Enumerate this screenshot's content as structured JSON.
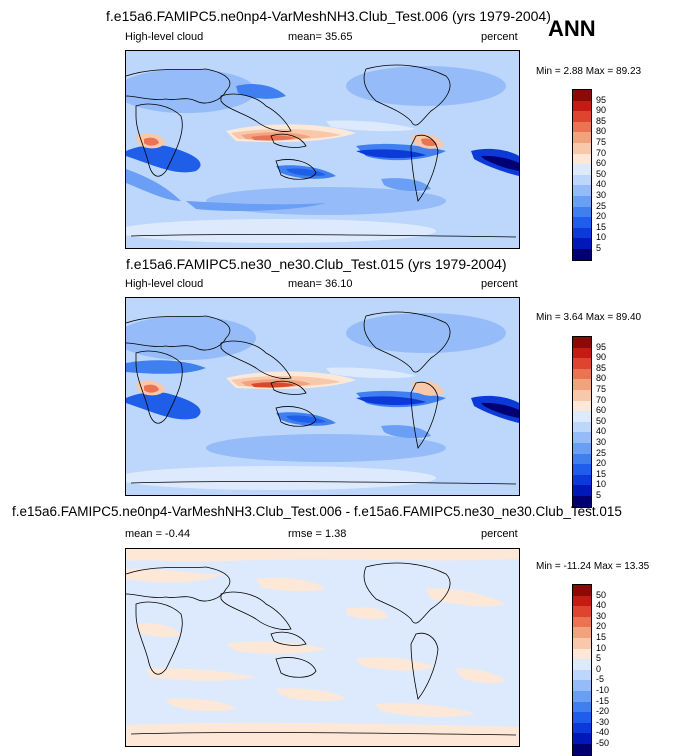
{
  "season": "ANN",
  "panels": [
    {
      "title": "f.e15a6.FAMIPC5.ne0np4-VarMeshNH3.Club_Test.006 (yrs 1979-2004)",
      "left_label": "High-level cloud",
      "center_label": "mean=  35.65",
      "right_label": "percent",
      "minmax": "Min =  2.88 Max =  89.23"
    },
    {
      "title": "f.e15a6.FAMIPC5.ne30_ne30.Club_Test.015 (yrs 1979-2004)",
      "left_label": "High-level cloud",
      "center_label": "mean=  36.10",
      "right_label": "percent",
      "minmax": "Min =  3.64 Max =  89.40"
    },
    {
      "title": "f.e15a6.FAMIPC5.ne0np4-VarMeshNH3.Club_Test.006 - f.e15a6.FAMIPC5.ne30_ne30.Club_Test.015",
      "left_label": "mean =  -0.44",
      "center_label": "rmse =   1.38",
      "right_label": "percent",
      "minmax": "Min = -11.24 Max =  13.35"
    }
  ],
  "chart_data": [
    {
      "type": "heatmap",
      "title": "f.e15a6.FAMIPC5.ne0np4-VarMeshNH3.Club_Test.006 (yrs 1979-2004)",
      "variable": "High-level cloud",
      "units": "percent",
      "mean": 35.65,
      "min": 2.88,
      "max": 89.23,
      "colorbar_levels": [
        5,
        10,
        15,
        20,
        25,
        30,
        40,
        50,
        60,
        70,
        75,
        80,
        85,
        90,
        95
      ],
      "colorbar_colors": [
        "#000073",
        "#0018b5",
        "#0b3ad9",
        "#1e5ee8",
        "#3f7ff0",
        "#6b9ef5",
        "#95bcf9",
        "#bcd7fb",
        "#ddeafd",
        "#fde8d8",
        "#f8c8aa",
        "#f3a27e",
        "#eb7354",
        "#dc4530",
        "#c21c14",
        "#8b0a06"
      ]
    },
    {
      "type": "heatmap",
      "title": "f.e15a6.FAMIPC5.ne30_ne30.Club_Test.015 (yrs 1979-2004)",
      "variable": "High-level cloud",
      "units": "percent",
      "mean": 36.1,
      "min": 3.64,
      "max": 89.4,
      "colorbar_levels": [
        5,
        10,
        15,
        20,
        25,
        30,
        40,
        50,
        60,
        70,
        75,
        80,
        85,
        90,
        95
      ],
      "colorbar_colors": [
        "#000073",
        "#0018b5",
        "#0b3ad9",
        "#1e5ee8",
        "#3f7ff0",
        "#6b9ef5",
        "#95bcf9",
        "#bcd7fb",
        "#ddeafd",
        "#fde8d8",
        "#f8c8aa",
        "#f3a27e",
        "#eb7354",
        "#dc4530",
        "#c21c14",
        "#8b0a06"
      ]
    },
    {
      "type": "heatmap",
      "title": "f.e15a6.FAMIPC5.ne0np4-VarMeshNH3.Club_Test.006 - f.e15a6.FAMIPC5.ne30_ne30.Club_Test.015",
      "units": "percent",
      "mean": -0.44,
      "rmse": 1.38,
      "min": -11.24,
      "max": 13.35,
      "colorbar_levels": [
        -50,
        -40,
        -30,
        -20,
        -15,
        -10,
        -5,
        0,
        5,
        10,
        15,
        20,
        30,
        40,
        50
      ],
      "colorbar_colors": [
        "#000073",
        "#0018b5",
        "#0b3ad9",
        "#1e5ee8",
        "#3f7ff0",
        "#6b9ef5",
        "#95bcf9",
        "#bcd7fb",
        "#ddeafd",
        "#fde8d8",
        "#f8c8aa",
        "#f3a27e",
        "#eb7354",
        "#dc4530",
        "#c21c14",
        "#8b0a06"
      ]
    }
  ]
}
